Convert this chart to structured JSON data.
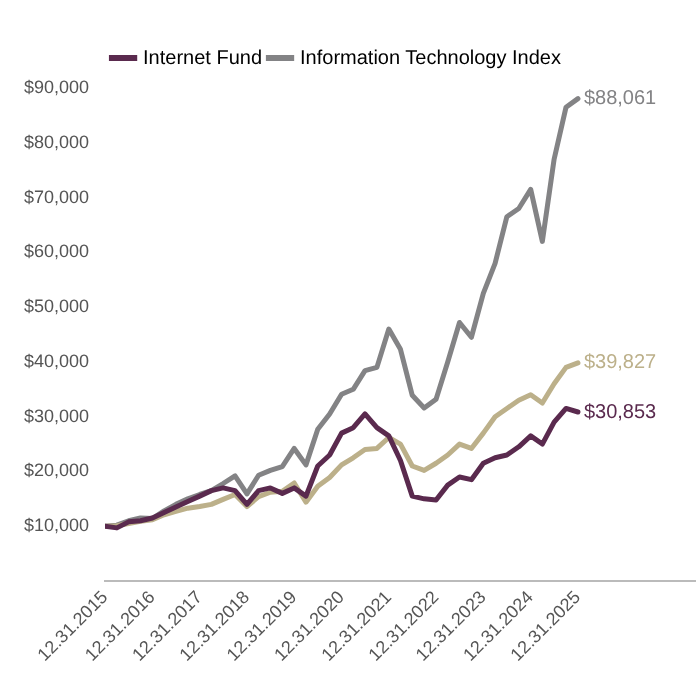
{
  "chart_data": {
    "type": "line",
    "x": [
      "2015-12-31",
      "2016-03-31",
      "2016-06-30",
      "2016-09-30",
      "2016-12-31",
      "2017-03-31",
      "2017-06-30",
      "2017-09-30",
      "2017-12-31",
      "2018-03-31",
      "2018-06-30",
      "2018-09-30",
      "2018-12-31",
      "2019-03-31",
      "2019-06-30",
      "2019-09-30",
      "2019-12-31",
      "2020-03-31",
      "2020-06-30",
      "2020-09-30",
      "2020-12-31",
      "2021-03-31",
      "2021-06-30",
      "2021-09-30",
      "2021-12-31",
      "2022-03-31",
      "2022-06-30",
      "2022-09-30",
      "2022-12-31",
      "2023-03-31",
      "2023-06-30",
      "2023-09-30",
      "2023-12-31",
      "2024-03-31",
      "2024-06-30",
      "2024-09-30",
      "2024-12-31",
      "2025-03-31",
      "2025-06-30",
      "2025-09-30",
      "2025-12-31"
    ],
    "series": [
      {
        "name": "Internet Fund",
        "color": "#5a2a4e",
        "values": [
          10000,
          9700,
          10800,
          11000,
          11500,
          12500,
          13500,
          14500,
          15500,
          16500,
          17000,
          16500,
          14000,
          16500,
          17000,
          16000,
          17000,
          15500,
          21000,
          23000,
          27000,
          28000,
          30500,
          28000,
          26500,
          22000,
          15500,
          15000,
          14800,
          17500,
          19000,
          18500,
          21500,
          22500,
          23000,
          24500,
          26500,
          25000,
          29000,
          31500,
          30853
        ],
        "value_labels": [
          null,
          null,
          null,
          null,
          null,
          null,
          null,
          null,
          null,
          null,
          null,
          null,
          null,
          null,
          null,
          null,
          null,
          null,
          null,
          null,
          null,
          null,
          null,
          null,
          null,
          null,
          null,
          null,
          null,
          null,
          null,
          null,
          null,
          null,
          null,
          null,
          null,
          null,
          null,
          null,
          "$30,853"
        ]
      },
      {
        "color": "#bcb08a",
        "values": [
          10000,
          10100,
          10500,
          10900,
          11200,
          12100,
          12700,
          13300,
          13600,
          14000,
          14900,
          15800,
          13600,
          15400,
          16200,
          16400,
          17900,
          14400,
          17300,
          18900,
          21200,
          22500,
          24000,
          24200,
          26200,
          25000,
          21000,
          20200,
          21500,
          23000,
          25000,
          24200,
          27000,
          30000,
          31500,
          33000,
          34000,
          32500,
          36000,
          39000,
          39827
        ],
        "value_labels": [
          null,
          null,
          null,
          null,
          null,
          null,
          null,
          null,
          null,
          null,
          null,
          null,
          null,
          null,
          null,
          null,
          null,
          null,
          null,
          null,
          null,
          null,
          null,
          null,
          null,
          null,
          null,
          null,
          null,
          null,
          null,
          null,
          null,
          null,
          null,
          null,
          null,
          null,
          null,
          null,
          "$39,827"
        ]
      },
      {
        "name": "Information Technology Index",
        "color": "#838385",
        "values": [
          10000,
          10200,
          11000,
          11500,
          11400,
          12800,
          14000,
          15000,
          15800,
          16500,
          17800,
          19200,
          15900,
          19300,
          20200,
          20900,
          24200,
          21200,
          27700,
          30500,
          34100,
          35000,
          38400,
          39000,
          46000,
          42300,
          33900,
          31600,
          33200,
          40000,
          47200,
          44500,
          52500,
          58000,
          66500,
          68000,
          71500,
          62000,
          77000,
          86500,
          88061
        ],
        "value_labels": [
          null,
          null,
          null,
          null,
          null,
          null,
          null,
          null,
          null,
          null,
          null,
          null,
          null,
          null,
          null,
          null,
          null,
          null,
          null,
          null,
          null,
          null,
          null,
          null,
          null,
          null,
          null,
          null,
          null,
          null,
          null,
          null,
          null,
          null,
          null,
          null,
          null,
          null,
          null,
          null,
          "$88,061"
        ]
      }
    ],
    "xlim": [
      "2015-12-31",
      "2028-06-30"
    ],
    "xticks": [
      {
        "value": "2015-12-31",
        "label": "12.31.2015"
      },
      {
        "value": "2016-12-31",
        "label": "12.31.2016"
      },
      {
        "value": "2017-12-31",
        "label": "12.31.2017"
      },
      {
        "value": "2018-12-31",
        "label": "12.31.2018"
      },
      {
        "value": "2019-12-31",
        "label": "12.31.2019"
      },
      {
        "value": "2020-12-31",
        "label": "12.31.2020"
      },
      {
        "value": "2021-12-31",
        "label": "12.31.2021"
      },
      {
        "value": "2022-12-31",
        "label": "12.31.2022"
      },
      {
        "value": "2023-12-31",
        "label": "12.31.2023"
      },
      {
        "value": "2024-12-31",
        "label": "12.31.2024"
      },
      {
        "value": "2025-12-31",
        "label": "12.31.2025"
      }
    ],
    "ylim": [
      0,
      90000
    ],
    "yticks": [
      {
        "value": 10000,
        "label": "$10,000"
      },
      {
        "value": 20000,
        "label": "$20,000"
      },
      {
        "value": 30000,
        "label": "$30,000"
      },
      {
        "value": 40000,
        "label": "$40,000"
      },
      {
        "value": 50000,
        "label": "$50,000"
      },
      {
        "value": 60000,
        "label": "$60,000"
      },
      {
        "value": 70000,
        "label": "$70,000"
      },
      {
        "value": 80000,
        "label": "$80,000"
      },
      {
        "value": 90000,
        "label": "$90,000"
      }
    ],
    "grid": false,
    "legend": "top left",
    "marker": "none",
    "line_style": "solid"
  }
}
